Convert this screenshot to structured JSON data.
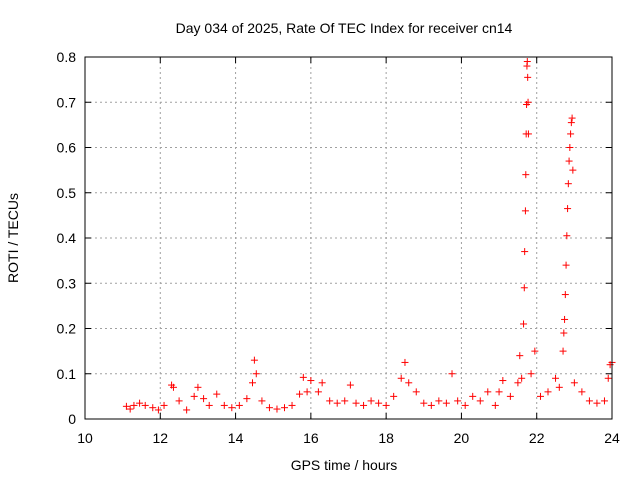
{
  "chart_data": {
    "type": "scatter",
    "title": "Day 034 of 2025, Rate Of TEC Index for receiver cn14",
    "xlabel": "GPS time / hours",
    "ylabel": "ROTI / TECUs",
    "xlim": [
      10,
      24
    ],
    "ylim": [
      0,
      0.8
    ],
    "x_ticks": [
      10,
      12,
      14,
      16,
      18,
      20,
      22,
      24
    ],
    "x_tick_labels": [
      "10",
      "12",
      "14",
      "16",
      "18",
      "20",
      "22",
      "24"
    ],
    "y_ticks": [
      0,
      0.1,
      0.2,
      0.3,
      0.4,
      0.5,
      0.6,
      0.7,
      0.8
    ],
    "y_tick_labels": [
      "0",
      "0.1",
      "0.2",
      "0.3",
      "0.4",
      "0.5",
      "0.6",
      "0.7",
      "0.8"
    ],
    "grid": true,
    "marker": "+",
    "series": [
      {
        "name": "cn14",
        "color": "#ff0000",
        "points": [
          [
            11.1,
            0.028
          ],
          [
            11.2,
            0.022
          ],
          [
            11.3,
            0.03
          ],
          [
            11.45,
            0.035
          ],
          [
            11.6,
            0.03
          ],
          [
            11.8,
            0.025
          ],
          [
            11.95,
            0.02
          ],
          [
            12.1,
            0.03
          ],
          [
            12.3,
            0.075
          ],
          [
            12.35,
            0.07
          ],
          [
            12.5,
            0.04
          ],
          [
            12.7,
            0.02
          ],
          [
            12.9,
            0.05
          ],
          [
            13.0,
            0.07
          ],
          [
            13.15,
            0.045
          ],
          [
            13.3,
            0.03
          ],
          [
            13.5,
            0.055
          ],
          [
            13.7,
            0.03
          ],
          [
            13.9,
            0.025
          ],
          [
            14.1,
            0.03
          ],
          [
            14.3,
            0.045
          ],
          [
            14.45,
            0.08
          ],
          [
            14.5,
            0.13
          ],
          [
            14.55,
            0.1
          ],
          [
            14.7,
            0.04
          ],
          [
            14.9,
            0.025
          ],
          [
            15.1,
            0.022
          ],
          [
            15.3,
            0.025
          ],
          [
            15.5,
            0.03
          ],
          [
            15.7,
            0.055
          ],
          [
            15.8,
            0.092
          ],
          [
            15.9,
            0.06
          ],
          [
            16.0,
            0.085
          ],
          [
            16.2,
            0.06
          ],
          [
            16.3,
            0.08
          ],
          [
            16.5,
            0.04
          ],
          [
            16.7,
            0.035
          ],
          [
            16.9,
            0.04
          ],
          [
            17.05,
            0.075
          ],
          [
            17.2,
            0.035
          ],
          [
            17.4,
            0.03
          ],
          [
            17.6,
            0.04
          ],
          [
            17.8,
            0.035
          ],
          [
            18.0,
            0.03
          ],
          [
            18.2,
            0.05
          ],
          [
            18.4,
            0.09
          ],
          [
            18.5,
            0.125
          ],
          [
            18.6,
            0.08
          ],
          [
            18.8,
            0.06
          ],
          [
            19.0,
            0.035
          ],
          [
            19.2,
            0.03
          ],
          [
            19.4,
            0.04
          ],
          [
            19.6,
            0.035
          ],
          [
            19.75,
            0.1
          ],
          [
            19.9,
            0.04
          ],
          [
            20.1,
            0.03
          ],
          [
            20.3,
            0.05
          ],
          [
            20.5,
            0.04
          ],
          [
            20.7,
            0.06
          ],
          [
            20.9,
            0.03
          ],
          [
            21.0,
            0.06
          ],
          [
            21.1,
            0.085
          ],
          [
            21.3,
            0.05
          ],
          [
            21.5,
            0.08
          ],
          [
            21.55,
            0.14
          ],
          [
            21.6,
            0.09
          ],
          [
            21.65,
            0.21
          ],
          [
            21.67,
            0.29
          ],
          [
            21.68,
            0.37
          ],
          [
            21.7,
            0.46
          ],
          [
            21.71,
            0.54
          ],
          [
            21.72,
            0.63
          ],
          [
            21.73,
            0.695
          ],
          [
            21.74,
            0.78
          ],
          [
            21.75,
            0.79
          ],
          [
            21.76,
            0.755
          ],
          [
            21.77,
            0.7
          ],
          [
            21.78,
            0.63
          ],
          [
            21.85,
            0.1
          ],
          [
            21.95,
            0.15
          ],
          [
            22.1,
            0.05
          ],
          [
            22.3,
            0.06
          ],
          [
            22.5,
            0.09
          ],
          [
            22.6,
            0.07
          ],
          [
            22.7,
            0.15
          ],
          [
            22.72,
            0.19
          ],
          [
            22.74,
            0.22
          ],
          [
            22.76,
            0.275
          ],
          [
            22.78,
            0.34
          ],
          [
            22.8,
            0.405
          ],
          [
            22.82,
            0.465
          ],
          [
            22.84,
            0.52
          ],
          [
            22.86,
            0.57
          ],
          [
            22.88,
            0.6
          ],
          [
            22.9,
            0.63
          ],
          [
            22.92,
            0.655
          ],
          [
            22.94,
            0.665
          ],
          [
            22.96,
            0.55
          ],
          [
            23.0,
            0.08
          ],
          [
            23.2,
            0.06
          ],
          [
            23.4,
            0.04
          ],
          [
            23.6,
            0.035
          ],
          [
            23.8,
            0.04
          ],
          [
            23.9,
            0.09
          ],
          [
            23.95,
            0.12
          ],
          [
            24.0,
            0.125
          ]
        ]
      }
    ]
  }
}
